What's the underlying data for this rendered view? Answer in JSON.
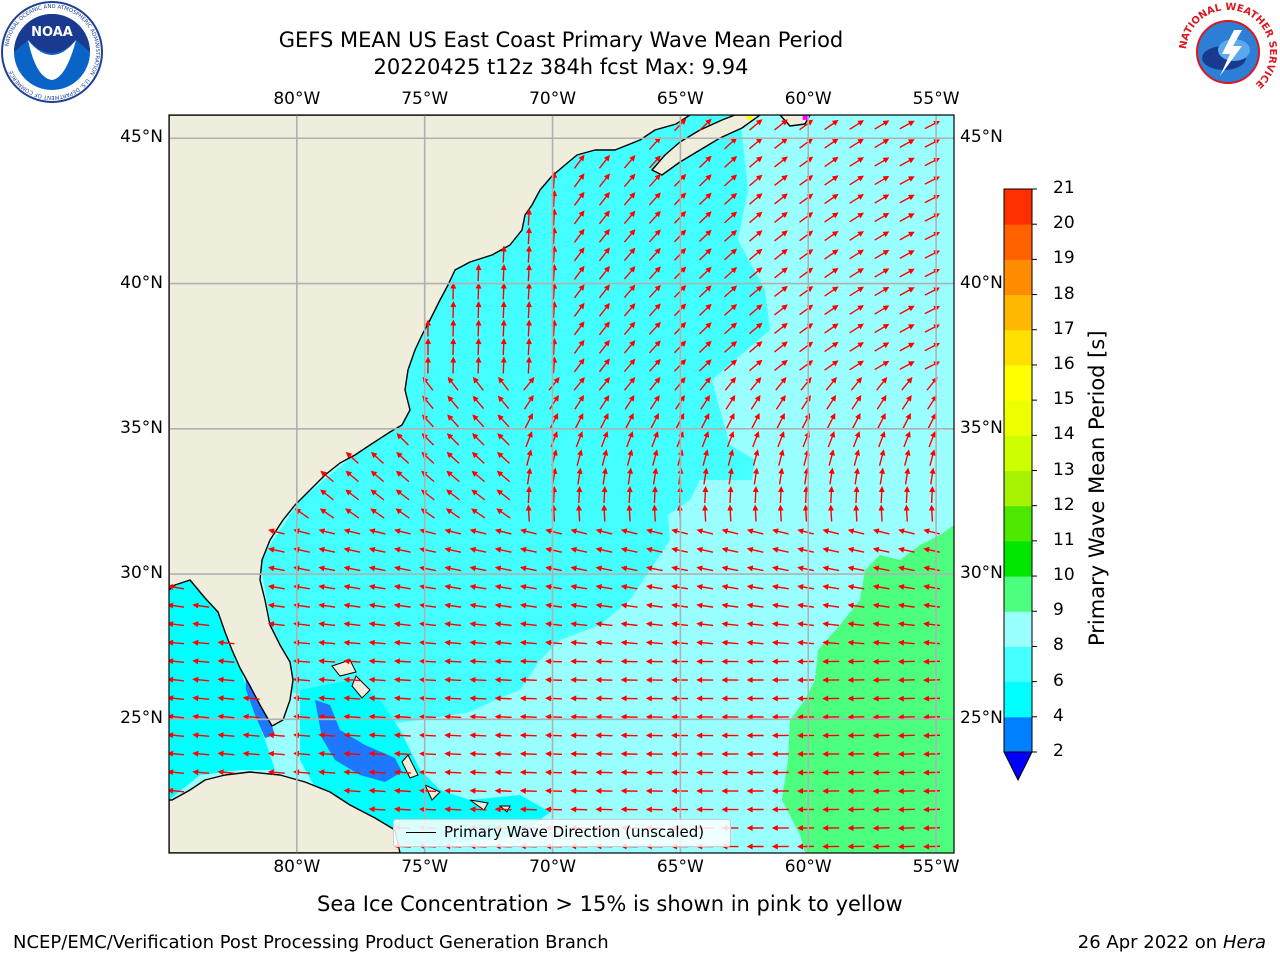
{
  "title": {
    "line1": "GEFS MEAN US East Coast Primary Wave Mean Period",
    "line2": "20220425 t12z 384h fcst   Max: 9.94"
  },
  "map": {
    "lon_ticks": [
      "80°W",
      "75°W",
      "70°W",
      "65°W",
      "60°W",
      "55°W"
    ],
    "lat_ticks": [
      "45°N",
      "40°N",
      "35°N",
      "30°N",
      "25°N"
    ],
    "lon_range": [
      -85,
      -54.3
    ],
    "lat_range": [
      20.4,
      45.8
    ],
    "colors": {
      "land": "#efeedd",
      "coast": "#000000",
      "grid": "#b0b0b0",
      "arrow": "#ff0000"
    },
    "legend_label": "Primary Wave Direction (unscaled)",
    "ice_marks": [
      {
        "lon": -62.3,
        "lat": 45.7,
        "color": "#ffff00"
      },
      {
        "lon": -60.1,
        "lat": 45.7,
        "color": "#ff00ff"
      }
    ]
  },
  "colorbar": {
    "label": "Primary Wave Mean Period [s]",
    "ticks": [
      "21",
      "20",
      "19",
      "18",
      "17",
      "16",
      "15",
      "14",
      "13",
      "12",
      "11",
      "10",
      "9",
      "8",
      "6",
      "4",
      "2"
    ],
    "levels": [
      2,
      4,
      6,
      8,
      9,
      10,
      11,
      12,
      13,
      14,
      15,
      16,
      17,
      18,
      19,
      20,
      21
    ],
    "colors": [
      "#0080ff",
      "#00ffff",
      "#44ffff",
      "#99ffff",
      "#4cff7f",
      "#00e800",
      "#4ce800",
      "#a6f200",
      "#ccff00",
      "#eeff00",
      "#ffff00",
      "#ffe000",
      "#ffb800",
      "#ff8c00",
      "#ff6000",
      "#ff3000"
    ],
    "under_color": "#0000ff"
  },
  "ice_note": "Sea Ice Concentration > 15% is shown in pink to yellow",
  "footer": {
    "left": "NCEP/EMC/Verification Post Processing Product Generation Branch",
    "date": "26 Apr 2022 on",
    "machine": "Hera"
  },
  "logos": {
    "noaa_text": "NOAA",
    "noaa_ring": "NATIONAL OCEANIC AND ATMOSPHERIC ADMINISTRATION · U.S. DEPARTMENT OF COMMERCE",
    "nws_ring": "NATIONAL WEATHER SERVICE"
  }
}
